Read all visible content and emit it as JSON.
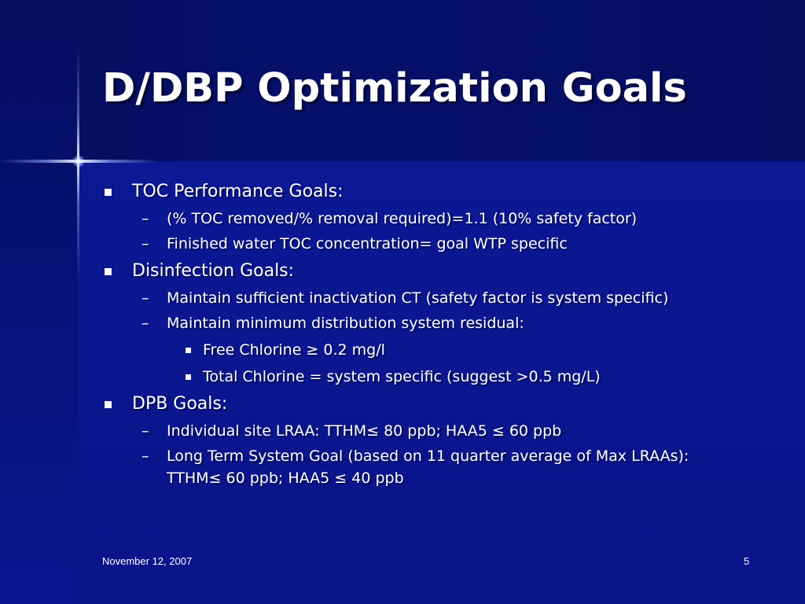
{
  "slide": {
    "title": "D/DBP Optimization Goals",
    "sections": [
      {
        "label": "TOC Performance Goals:",
        "items": [
          {
            "text": "(% TOC removed/% removal required)=1.1 (10% safety factor)"
          },
          {
            "text": "Finished water TOC concentration= goal WTP specific"
          }
        ]
      },
      {
        "label": "Disinfection Goals:",
        "items": [
          {
            "text": "Maintain sufficient inactivation CT (safety factor is system specific)"
          },
          {
            "text": "Maintain minimum distribution system residual:",
            "subitems": [
              "Free Chlorine ≥ 0.2 mg/l",
              "Total Chlorine = system specific (suggest >0.5 mg/L)"
            ]
          }
        ]
      },
      {
        "label": "DPB Goals:",
        "items": [
          {
            "text": "Individual site LRAA: TTHM≤ 80 ppb; HAA5 ≤ 60 ppb"
          },
          {
            "text": "Long Term System Goal (based on 11 quarter average of Max LRAAs): TTHM≤ 60 ppb; HAA5 ≤ 40 ppb"
          }
        ]
      }
    ],
    "dash": "–",
    "footer": {
      "date": "November 12, 2007",
      "page_number": "5"
    }
  },
  "colors": {
    "background": "#0a1694",
    "header_band": "#060e62",
    "text": "#ffffff"
  }
}
